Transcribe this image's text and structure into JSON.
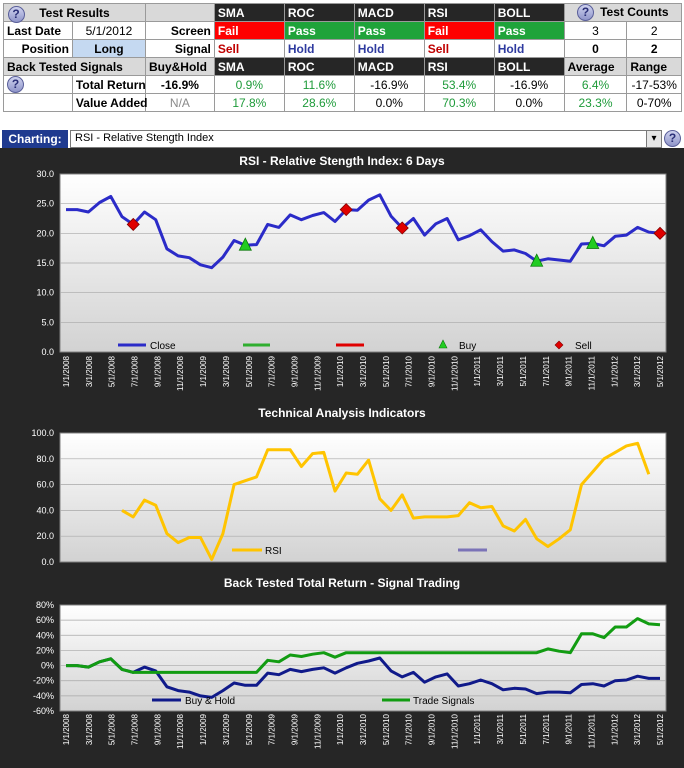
{
  "summary": {
    "test_results_label": "Test Results",
    "last_date_label": "Last Date",
    "last_date_value": "5/1/2012",
    "position_label": "Position",
    "position_value": "Long",
    "screen_label": "Screen",
    "signal_label": "Signal",
    "back_tested_label": "Back Tested Signals",
    "buy_hold_label": "Buy&Hold",
    "total_return_label": "Total Return",
    "value_added_label": "Value Added",
    "test_counts_label": "Test Counts",
    "average_label": "Average",
    "range_label": "Range",
    "help_glyph": "?",
    "indicators": [
      {
        "name": "SMA",
        "screen": "Fail",
        "signal": "Sell",
        "total_return": "0.9%",
        "value_added": "17.8%"
      },
      {
        "name": "ROC",
        "screen": "Pass",
        "signal": "Hold",
        "total_return": "11.6%",
        "value_added": "28.6%"
      },
      {
        "name": "MACD",
        "screen": "Pass",
        "signal": "Hold",
        "total_return": "-16.9%",
        "value_added": "0.0%"
      },
      {
        "name": "RSI",
        "screen": "Fail",
        "signal": "Sell",
        "total_return": "53.4%",
        "value_added": "70.3%"
      },
      {
        "name": "BOLL",
        "screen": "Pass",
        "signal": "Hold",
        "total_return": "-16.9%",
        "value_added": "0.0%"
      }
    ],
    "buy_hold_total_return": "-16.9%",
    "buy_hold_value_added": "N/A",
    "counts": {
      "screen_a": "3",
      "screen_b": "2",
      "signal_a": "0",
      "signal_b": "2"
    },
    "average_total_return": "6.4%",
    "average_value_added": "23.3%",
    "range_total_return": "-17-53%",
    "range_value_added": "0-70%"
  },
  "charting": {
    "label": "Charting:",
    "selected": "RSI - Relative Stength Index",
    "dropdown_glyph": "▾",
    "help_glyph": "?"
  },
  "colors": {
    "close": "#2b2bc8",
    "rsi": "#ffc400",
    "sell": "#e00000",
    "buy": "#22cc22",
    "trade": "#129c12",
    "buyhold": "#101a8a",
    "purple": "#7b73b7"
  },
  "x_ticks": [
    "1/1/2008",
    "3/1/2008",
    "5/1/2008",
    "7/1/2008",
    "9/1/2008",
    "11/1/2008",
    "1/1/2009",
    "3/1/2009",
    "5/1/2009",
    "7/1/2009",
    "9/1/2009",
    "11/1/2009",
    "1/1/2010",
    "3/1/2010",
    "5/1/2010",
    "7/1/2010",
    "9/1/2010",
    "11/1/2010",
    "1/1/2011",
    "3/1/2011",
    "5/1/2011",
    "7/1/2011",
    "9/1/2011",
    "11/1/2011",
    "1/1/2012",
    "3/1/2012",
    "5/1/2012"
  ],
  "chart_data": [
    {
      "type": "line",
      "title": "RSI - Relative Stength Index: 6 Days",
      "ylim": [
        0,
        30
      ],
      "y_ticks": [
        "0.0",
        "5.0",
        "10.0",
        "15.0",
        "20.0",
        "25.0",
        "30.0"
      ],
      "grid": true,
      "legend": [
        "Close",
        "",
        "",
        "Buy",
        "Sell"
      ],
      "series": [
        {
          "name": "Close",
          "values": [
            24.0,
            24.0,
            23.6,
            25.2,
            26.2,
            22.8,
            21.5,
            23.6,
            22.3,
            17.4,
            16.2,
            15.9,
            14.7,
            14.2,
            16.0,
            18.8,
            18.0,
            18.1,
            21.5,
            21.0,
            23.1,
            22.3,
            23.0,
            23.5,
            22.0,
            24.0,
            23.9,
            25.6,
            26.5,
            22.9,
            20.9,
            22.5,
            19.7,
            21.6,
            22.5,
            18.9,
            19.6,
            20.6,
            18.6,
            17.0,
            17.2,
            16.6,
            15.3,
            15.7,
            15.5,
            15.3,
            18.2,
            18.3,
            17.9,
            19.5,
            19.7,
            21.0,
            20.2,
            20.0
          ]
        }
      ],
      "buy_points": [
        {
          "i": 16,
          "value": 18.0
        },
        {
          "i": 42,
          "value": 15.3
        },
        {
          "i": 47,
          "value": 18.3
        }
      ],
      "sell_points": [
        {
          "i": 6,
          "value": 21.5
        },
        {
          "i": 25,
          "value": 24.0
        },
        {
          "i": 30,
          "value": 20.9
        },
        {
          "i": 53,
          "value": 20.0
        }
      ]
    },
    {
      "type": "line",
      "title": "Technical Analysis Indicators",
      "ylim": [
        0,
        100
      ],
      "y_ticks": [
        "0.0",
        "20.0",
        "40.0",
        "60.0",
        "80.0",
        "100.0"
      ],
      "grid": true,
      "legend": [
        "RSI",
        ""
      ],
      "series": [
        {
          "name": "RSI",
          "start_index": 5,
          "values": [
            40,
            35,
            48,
            44,
            22,
            15,
            19,
            19,
            2,
            22,
            60,
            63,
            66,
            87,
            87,
            87,
            74,
            84,
            85,
            55,
            69,
            68,
            79,
            49,
            40,
            52,
            34,
            35,
            35,
            35,
            36,
            46,
            42,
            43,
            28,
            24,
            33,
            18,
            12,
            18,
            25,
            60,
            70,
            80,
            85,
            90,
            92,
            68
          ]
        }
      ]
    },
    {
      "type": "line",
      "title": "Back Tested Total Return - Signal Trading",
      "ylim": [
        -60,
        80
      ],
      "y_ticks": [
        "-60%",
        "-40%",
        "-20%",
        "0%",
        "20%",
        "40%",
        "60%",
        "80%"
      ],
      "grid": true,
      "legend": [
        "Buy & Hold",
        "Trade Signals"
      ],
      "series": [
        {
          "name": "Buy & Hold",
          "values": [
            0,
            0,
            -2,
            5,
            9,
            -5,
            -9,
            -2,
            -7,
            -28,
            -33,
            -35,
            -40,
            -42,
            -33,
            -23,
            -26,
            -26,
            -10,
            -12,
            -5,
            -8,
            -5,
            -3,
            -10,
            -3,
            3,
            6,
            10,
            -7,
            -15,
            -9,
            -22,
            -15,
            -11,
            -27,
            -24,
            -19,
            -24,
            -32,
            -30,
            -31,
            -37,
            -35,
            -35,
            -36,
            -25,
            -24,
            -27,
            -20,
            -19,
            -14,
            -17,
            -17
          ]
        },
        {
          "name": "Trade Signals",
          "values": [
            0,
            0,
            -2,
            5,
            9,
            -5,
            -9,
            -9,
            -9,
            -9,
            -9,
            -9,
            -9,
            -9,
            -9,
            -9,
            -9,
            -9,
            7,
            5,
            14,
            12,
            15,
            17,
            11,
            17,
            17,
            17,
            17,
            17,
            17,
            17,
            17,
            17,
            17,
            17,
            17,
            17,
            17,
            17,
            17,
            17,
            17,
            22,
            19,
            17,
            42,
            42,
            37,
            51,
            51,
            62,
            55,
            54
          ]
        }
      ]
    }
  ]
}
